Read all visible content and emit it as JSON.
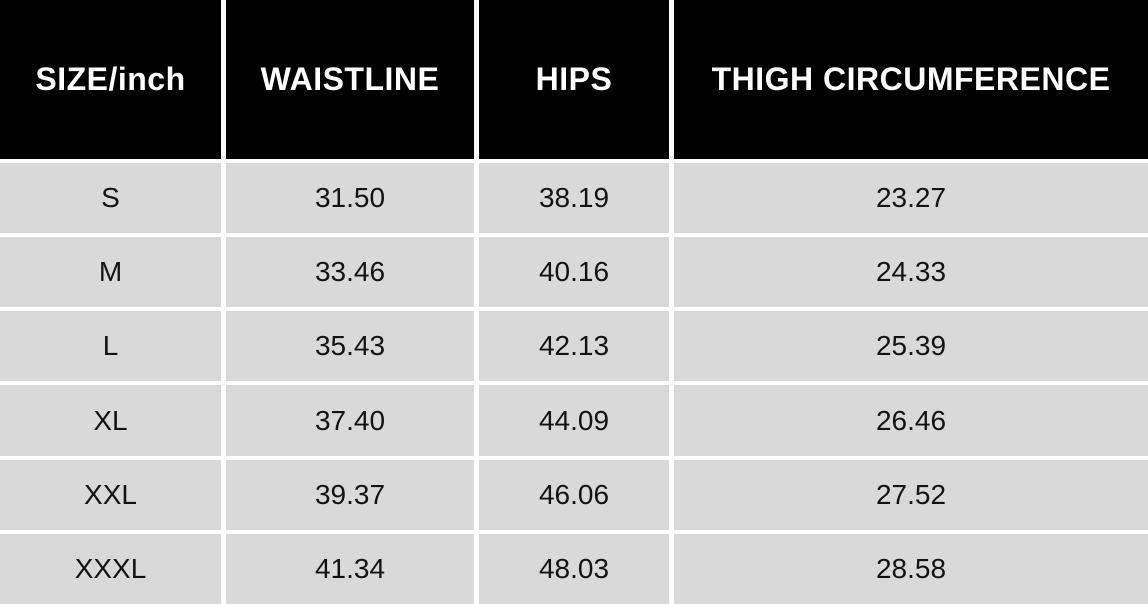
{
  "chart_data": {
    "type": "table",
    "columns": [
      "SIZE/inch",
      "WAISTLINE",
      "HIPS",
      "THIGH CIRCUMFERENCE"
    ],
    "rows": [
      [
        "S",
        "31.50",
        "38.19",
        "23.27"
      ],
      [
        "M",
        "33.46",
        "40.16",
        "24.33"
      ],
      [
        "L",
        "35.43",
        "42.13",
        "25.39"
      ],
      [
        "XL",
        "37.40",
        "44.09",
        "26.46"
      ],
      [
        "XXL",
        "39.37",
        "46.06",
        "27.52"
      ],
      [
        "XXXL",
        "41.34",
        "48.03",
        "28.58"
      ]
    ]
  },
  "colors": {
    "header_bg": "#000000",
    "header_text": "#ffffff",
    "row_bg": "#d9d9d9",
    "row_text": "#121212",
    "divider": "#ffffff"
  }
}
